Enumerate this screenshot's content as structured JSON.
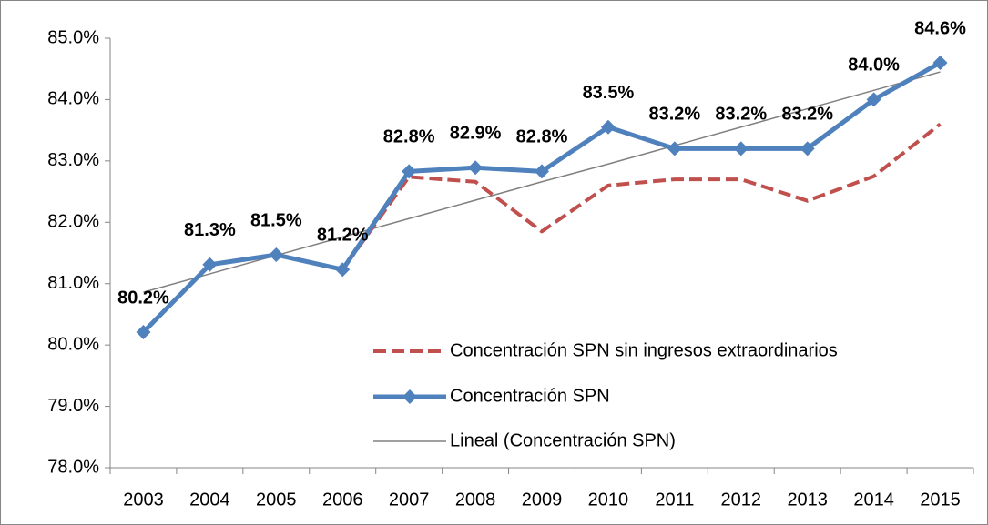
{
  "chart_data": {
    "type": "line",
    "categories": [
      "2003",
      "2004",
      "2005",
      "2006",
      "2007",
      "2008",
      "2009",
      "2010",
      "2011",
      "2012",
      "2013",
      "2014",
      "2015"
    ],
    "series": [
      {
        "name": "Concentración SPN sin ingresos extraordinarios",
        "color": "#c0504d",
        "dash": true,
        "values": [
          80.21,
          81.31,
          81.47,
          81.23,
          82.74,
          82.66,
          81.85,
          82.6,
          82.7,
          82.7,
          82.35,
          82.75,
          83.6
        ]
      },
      {
        "name": "Concentración SPN",
        "color": "#4f81bd",
        "marker": "diamond",
        "values": [
          80.21,
          81.31,
          81.47,
          81.23,
          82.83,
          82.89,
          82.83,
          83.55,
          83.2,
          83.2,
          83.2,
          84.0,
          84.6
        ],
        "value_labels": [
          "80.2%",
          "81.3%",
          "81.5%",
          "81.2%",
          "82.8%",
          "82.9%",
          "82.8%",
          "83.5%",
          "83.2%",
          "83.2%",
          "83.2%",
          "84.0%",
          "84.6%"
        ]
      },
      {
        "name": "Lineal (Concentración SPN)",
        "color": "#808080",
        "values": [
          80.86,
          81.16,
          81.46,
          81.76,
          82.06,
          82.36,
          82.66,
          82.95,
          83.25,
          83.55,
          83.85,
          84.15,
          84.45
        ]
      }
    ],
    "ylim": [
      78,
      85
    ],
    "yticks": [
      {
        "value": 78,
        "label": "78.0%"
      },
      {
        "value": 79,
        "label": "79.0%"
      },
      {
        "value": 80,
        "label": "80.0%"
      },
      {
        "value": 81,
        "label": "81.0%"
      },
      {
        "value": 82,
        "label": "82.0%"
      },
      {
        "value": 83,
        "label": "83.0%"
      },
      {
        "value": 84,
        "label": "84.0%"
      },
      {
        "value": 85,
        "label": "85.0%"
      }
    ],
    "grid": false,
    "legend": "lower right"
  }
}
